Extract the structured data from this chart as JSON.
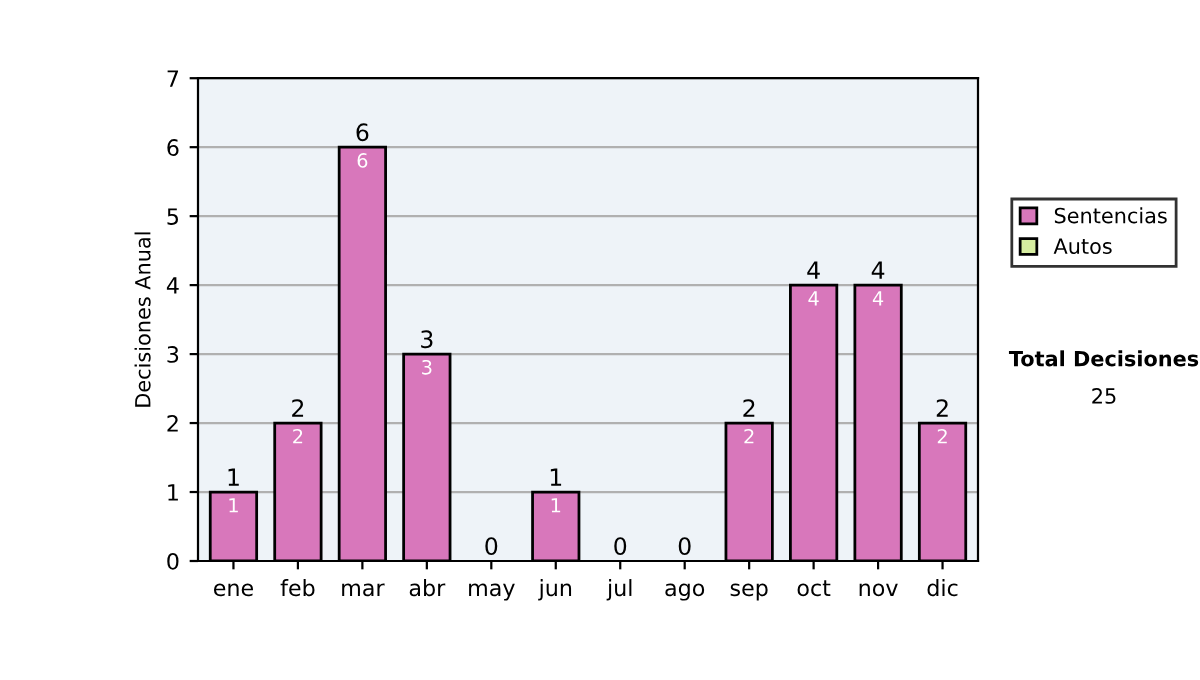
{
  "chart_data": {
    "type": "bar",
    "stacked": true,
    "ylabel": "Decisiones Anual",
    "categories": [
      "ene",
      "feb",
      "mar",
      "abr",
      "may",
      "jun",
      "jul",
      "ago",
      "sep",
      "oct",
      "nov",
      "dic"
    ],
    "series": [
      {
        "name": "Sentencias",
        "color": "#d877bb",
        "values": [
          1,
          2,
          6,
          3,
          0,
          1,
          0,
          0,
          2,
          4,
          4,
          2
        ],
        "value_labels": [
          "1",
          "2",
          "6",
          "3",
          null,
          "1",
          null,
          null,
          "2",
          "4",
          "4",
          "2"
        ]
      },
      {
        "name": "Autos",
        "color": "#d6eda0",
        "values": [
          0,
          0,
          0,
          0,
          0,
          0,
          0,
          0,
          0,
          0,
          0,
          0
        ]
      }
    ],
    "totals": [
      "1",
      "2",
      "6",
      "3",
      "0",
      "1",
      "0",
      "0",
      "2",
      "4",
      "4",
      "2"
    ],
    "ylim": [
      0,
      7
    ],
    "yticks": [
      0,
      1,
      2,
      3,
      4,
      5,
      6,
      7
    ],
    "grid": "y",
    "legend": "right",
    "annotations": [
      "Total Decisiones",
      "25"
    ]
  }
}
